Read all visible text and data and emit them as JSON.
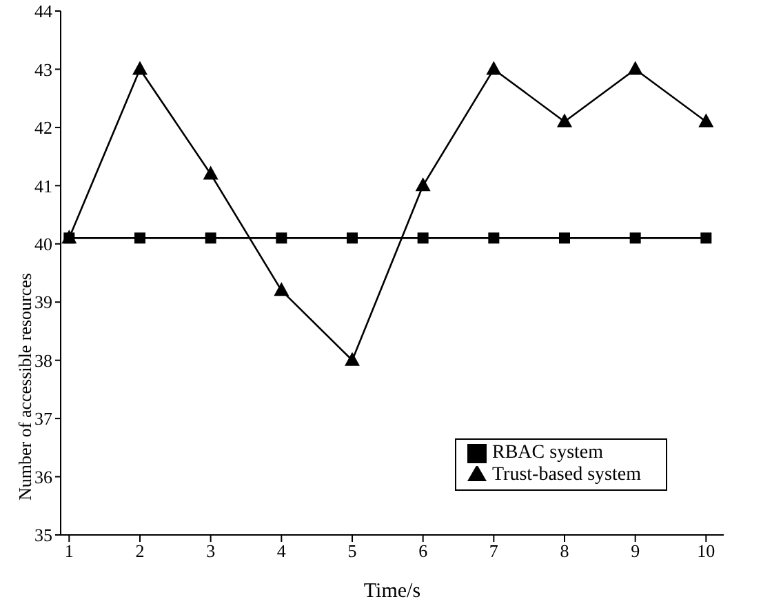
{
  "chart_data": {
    "type": "line",
    "xlabel": "Time/s",
    "ylabel": "Number of accessible resources",
    "x": [
      1,
      2,
      3,
      4,
      5,
      6,
      7,
      8,
      9,
      10
    ],
    "xlim": [
      0.88,
      10.25
    ],
    "xticks": [
      1,
      2,
      3,
      4,
      5,
      6,
      7,
      8,
      9,
      10
    ],
    "ylim": [
      35,
      44
    ],
    "yticks": [
      35,
      36,
      37,
      38,
      39,
      40,
      41,
      42,
      43,
      44
    ],
    "grid": false,
    "legend": "bottom right",
    "line_style": "solid",
    "series": [
      {
        "name": "RBAC system",
        "color": "#000000",
        "marker": "square",
        "values": [
          40.1,
          40.1,
          40.1,
          40.1,
          40.1,
          40.1,
          40.1,
          40.1,
          40.1,
          40.1
        ]
      },
      {
        "name": "Trust-based system",
        "color": "#000000",
        "marker": "triangle",
        "values": [
          40.1,
          43,
          41.2,
          39.2,
          38,
          41,
          43,
          42.1,
          43,
          42.1
        ]
      }
    ]
  }
}
